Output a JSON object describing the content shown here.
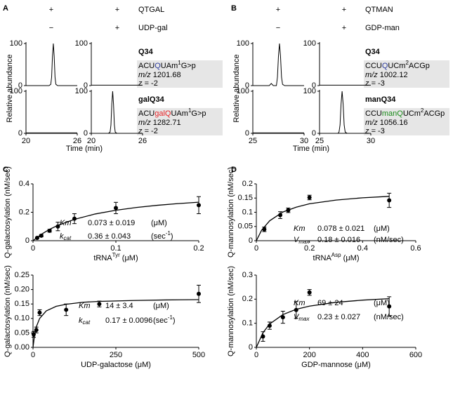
{
  "panel_labels": [
    "A",
    "B",
    "C",
    "D"
  ],
  "chromatogram_panels": [
    {
      "enzyme": {
        "name": "QTGAL",
        "color": "#e8262a",
        "marks": [
          "+",
          "+"
        ]
      },
      "substrate": {
        "name": "UDP-gal",
        "marks": [
          "−",
          "+"
        ]
      },
      "y_label": "Relative abundance",
      "x_label": "Time (min)",
      "species": [
        {
          "name": "Q34",
          "color": "#2e3d9e",
          "sequence": [
            {
              "text": "ACU"
            },
            {
              "text": "Q",
              "color": "#2e3d9e"
            },
            {
              "text": "UAm"
            },
            {
              "text": "1",
              "sup": true
            },
            {
              "text": "G>p"
            }
          ],
          "mz_label": "m/z",
          "mz": 1201.68,
          "z_label": "z",
          "z": "= -2"
        },
        {
          "name": "galQ34",
          "color": "#e8262a",
          "sequence": [
            {
              "text": "ACU"
            },
            {
              "text": "galQ",
              "color": "#e8262a"
            },
            {
              "text": "UAm"
            },
            {
              "text": "1",
              "sup": true
            },
            {
              "text": "G>p"
            }
          ],
          "mz_label": "m/z",
          "mz": 1282.71,
          "z_label": "z",
          "z": "= -2"
        }
      ]
    },
    {
      "enzyme": {
        "name": "QTMAN",
        "color": "#1a8a1a",
        "marks": [
          "+",
          "+"
        ]
      },
      "substrate": {
        "name": "GDP-man",
        "marks": [
          "−",
          "+"
        ]
      },
      "y_label": "Relative abundance",
      "x_label": "Time (min)",
      "species": [
        {
          "name": "Q34",
          "color": "#2e3d9e",
          "sequence": [
            {
              "text": "CCU"
            },
            {
              "text": "Q",
              "color": "#2e3d9e"
            },
            {
              "text": "UCm"
            },
            {
              "text": "2",
              "sup": true
            },
            {
              "text": "ACGp"
            }
          ],
          "mz_label": "m/z",
          "mz": 1002.12,
          "z_label": "z",
          "z": "= -3"
        },
        {
          "name": "manQ34",
          "color": "#1a8a1a",
          "sequence": [
            {
              "text": "CCU"
            },
            {
              "text": "manQ",
              "color": "#1a8a1a"
            },
            {
              "text": "UCm"
            },
            {
              "text": "2",
              "sup": true
            },
            {
              "text": "ACGp"
            }
          ],
          "mz_label": "m/z",
          "mz": 1056.16,
          "z_label": "z",
          "z": "= -3"
        }
      ]
    }
  ],
  "chart_data": [
    {
      "type": "line",
      "x": [
        20,
        22.7,
        22.9,
        23.0,
        23.1,
        23.2,
        23.3,
        23.4,
        23.5,
        23.7,
        26
      ],
      "series": [
        {
          "color": "#000000",
          "values": [
            0,
            0,
            3,
            20,
            70,
            100,
            70,
            20,
            3,
            0,
            0
          ]
        }
      ],
      "xlim": [
        20,
        26
      ],
      "ylim": [
        0,
        100
      ],
      "yticks": [
        0,
        100
      ]
    },
    {
      "type": "line",
      "x": [
        20,
        26
      ],
      "series": [
        {
          "color": "#000000",
          "values": [
            1,
            1
          ]
        }
      ],
      "xlim": [
        20,
        26
      ],
      "ylim": [
        0,
        100
      ],
      "yticks": [
        0,
        100
      ]
    },
    {
      "type": "line",
      "x": [
        20,
        26
      ],
      "series": [
        {
          "color": "#000000",
          "values": [
            1,
            1
          ]
        }
      ],
      "xlim": [
        20,
        26
      ],
      "ylim": [
        0,
        100
      ],
      "yticks": [
        0,
        100
      ],
      "xticks": [
        20,
        26
      ]
    },
    {
      "type": "line",
      "x": [
        20,
        22,
        22.2,
        22.3,
        22.4,
        22.5,
        22.6,
        22.7,
        22.8,
        23,
        26
      ],
      "series": [
        {
          "color": "#000000",
          "values": [
            0,
            0,
            3,
            20,
            70,
            100,
            70,
            20,
            3,
            0,
            0
          ]
        }
      ],
      "xlim": [
        20,
        26
      ],
      "ylim": [
        0,
        100
      ],
      "yticks": [
        0,
        100
      ],
      "xticks": [
        20,
        26
      ]
    },
    {
      "type": "line",
      "x": [
        25,
        26.6,
        26.8,
        27.0,
        27.3,
        27.4,
        27.5,
        27.6,
        27.7,
        27.8,
        27.9,
        28.1,
        30
      ],
      "series": [
        {
          "color": "#000000",
          "values": [
            0,
            0,
            5,
            0,
            0,
            20,
            70,
            100,
            70,
            20,
            3,
            0,
            0
          ]
        }
      ],
      "xlim": [
        25,
        30
      ],
      "ylim": [
        0,
        100
      ],
      "yticks": [
        0,
        100
      ]
    },
    {
      "type": "line",
      "x": [
        25,
        30
      ],
      "series": [
        {
          "color": "#000000",
          "values": [
            1,
            1
          ]
        }
      ],
      "xlim": [
        25,
        30
      ],
      "ylim": [
        0,
        100
      ],
      "yticks": [
        0,
        100
      ]
    },
    {
      "type": "line",
      "x": [
        25,
        30
      ],
      "series": [
        {
          "color": "#000000",
          "values": [
            1,
            1
          ]
        }
      ],
      "xlim": [
        25,
        30
      ],
      "ylim": [
        0,
        100
      ],
      "yticks": [
        0,
        100
      ],
      "xticks": [
        25,
        30
      ]
    },
    {
      "type": "line",
      "x": [
        25,
        26.8,
        26.9,
        27.0,
        27.1,
        27.2,
        27.3,
        27.4,
        27.5,
        27.7,
        30
      ],
      "series": [
        {
          "color": "#000000",
          "values": [
            0,
            0,
            3,
            20,
            70,
            100,
            70,
            20,
            3,
            0,
            0
          ]
        }
      ],
      "xlim": [
        25,
        30
      ],
      "ylim": [
        0,
        100
      ],
      "yticks": [
        0,
        100
      ],
      "xticks": [
        25,
        30
      ]
    },
    {
      "type": "scatter",
      "y_label": "Q-galactosylation (nM/sec)",
      "x_label": [
        {
          "text": "tRNA"
        },
        {
          "text": "Tyr",
          "sup": true
        },
        {
          "text": " (μM)"
        }
      ],
      "color": "#000000",
      "x": [
        0.005,
        0.01,
        0.02,
        0.03,
        0.05,
        0.1,
        0.2
      ],
      "values": [
        0.02,
        0.035,
        0.07,
        0.1,
        0.155,
        0.23,
        0.25
      ],
      "errors": [
        0.005,
        0.008,
        0.01,
        0.03,
        0.035,
        0.04,
        0.06
      ],
      "fit": {
        "x": [
          0,
          0.01,
          0.02,
          0.03,
          0.05,
          0.075,
          0.1,
          0.125,
          0.15,
          0.175,
          0.2
        ],
        "values": [
          0,
          0.045,
          0.08,
          0.108,
          0.15,
          0.188,
          0.214,
          0.234,
          0.249,
          0.261,
          0.271
        ]
      },
      "xlim": [
        0,
        0.2
      ],
      "xticks": [
        0,
        0.1,
        0.2
      ],
      "ylim": [
        0,
        0.4
      ],
      "yticks": [
        0,
        0.2,
        0.4
      ],
      "annotations": [
        {
          "symbol": [
            {
              "text": "Km"
            }
          ],
          "value": "0.073 ± 0.019",
          "unit": [
            {
              "text": "(μM)"
            }
          ]
        },
        {
          "symbol": [
            {
              "text": "k"
            },
            {
              "text": "cat",
              "sub": true
            }
          ],
          "value": "0.36 ± 0.043",
          "unit": [
            {
              "text": "(sec"
            },
            {
              "text": "-1",
              "sup": true
            },
            {
              "text": ")"
            }
          ]
        }
      ]
    },
    {
      "type": "scatter",
      "y_label": "Q-galactosylation (nM/sec)",
      "x_label": [
        {
          "text": "UDP-galactose (μM)"
        }
      ],
      "color": "#000000",
      "x": [
        2,
        10,
        20,
        100,
        200,
        500
      ],
      "values": [
        0.045,
        0.06,
        0.12,
        0.13,
        0.15,
        0.185
      ],
      "errors": [
        0.01,
        0.01,
        0.01,
        0.02,
        0.01,
        0.03
      ],
      "fit": {
        "x": [
          0,
          5,
          10,
          20,
          40,
          70,
          100,
          150,
          200,
          300,
          400,
          500
        ],
        "values": [
          0,
          0.045,
          0.071,
          0.1,
          0.126,
          0.142,
          0.149,
          0.156,
          0.159,
          0.162,
          0.164,
          0.165
        ]
      },
      "xlim": [
        0,
        500
      ],
      "xticks": [
        0,
        250,
        500
      ],
      "ylim": [
        0,
        0.25
      ],
      "yticks": [
        {
          "value": 0,
          "label": "0.00"
        },
        {
          "value": 0.05,
          "label": "0.05"
        },
        {
          "value": 0.1,
          "label": "0.10"
        },
        {
          "value": 0.15,
          "label": "0.15"
        },
        {
          "value": 0.2,
          "label": "0.20"
        },
        {
          "value": 0.25,
          "label": "0.25"
        }
      ],
      "annotations": [
        {
          "symbol": [
            {
              "text": "Km"
            }
          ],
          "value": "14 ± 3.4",
          "unit": [
            {
              "text": "(μM)"
            }
          ]
        },
        {
          "symbol": [
            {
              "text": "k"
            },
            {
              "text": "cat",
              "sub": true
            }
          ],
          "value": "0.17 ± 0.0096",
          "unit": [
            {
              "text": "(sec"
            },
            {
              "text": "-1",
              "sup": true
            },
            {
              "text": ")"
            }
          ]
        }
      ]
    },
    {
      "type": "scatter",
      "y_label": "Q-mannosylation (nM/sec)",
      "x_label": [
        {
          "text": "tRNA"
        },
        {
          "text": "Asp",
          "sup": true
        },
        {
          "text": " (μM)"
        }
      ],
      "color": "#000000",
      "x": [
        0.03,
        0.09,
        0.12,
        0.2,
        0.5
      ],
      "values": [
        0.04,
        0.09,
        0.107,
        0.152,
        0.142
      ],
      "errors": [
        0.008,
        0.012,
        0.008,
        0.008,
        0.025
      ],
      "fit": {
        "x": [
          0,
          0.02,
          0.05,
          0.1,
          0.15,
          0.2,
          0.3,
          0.4,
          0.5
        ],
        "values": [
          0,
          0.037,
          0.07,
          0.101,
          0.118,
          0.13,
          0.143,
          0.151,
          0.156
        ]
      },
      "xlim": [
        0,
        0.6
      ],
      "xticks": [
        0,
        0.2,
        0.4,
        0.6
      ],
      "ylim": [
        0,
        0.2
      ],
      "yticks": [
        0,
        0.05,
        0.1,
        0.15,
        0.2
      ],
      "annotations": [
        {
          "symbol": [
            {
              "text": "Km"
            }
          ],
          "value": "0.078 ± 0.021",
          "unit": [
            {
              "text": "(μM)"
            }
          ]
        },
        {
          "symbol": [
            {
              "text": "V"
            },
            {
              "text": "max",
              "sub": true
            }
          ],
          "value": "0.18 ± 0.016",
          "unit": [
            {
              "text": "(nM/sec)"
            }
          ]
        }
      ]
    },
    {
      "type": "scatter",
      "y_label": "Q-mannosylation (nM/sec)",
      "x_label": [
        {
          "text": "GDP-mannose (μM)"
        }
      ],
      "color": "#000000",
      "x": [
        25,
        50,
        100,
        150,
        200,
        500
      ],
      "values": [
        0.045,
        0.09,
        0.125,
        0.155,
        0.228,
        0.17
      ],
      "errors": [
        0.02,
        0.015,
        0.025,
        0.035,
        0.012,
        0.04
      ],
      "fit": {
        "x": [
          0,
          25,
          50,
          100,
          150,
          200,
          300,
          400,
          500
        ],
        "values": [
          0,
          0.061,
          0.097,
          0.136,
          0.158,
          0.171,
          0.187,
          0.196,
          0.202
        ]
      },
      "xlim": [
        0,
        600
      ],
      "xticks": [
        0,
        200,
        400,
        600
      ],
      "ylim": [
        0,
        0.3
      ],
      "yticks": [
        0,
        0.1,
        0.2,
        0.3
      ],
      "annotations": [
        {
          "symbol": [
            {
              "text": "Km"
            }
          ],
          "value": "69 ± 24",
          "unit": [
            {
              "text": "(μM)"
            }
          ]
        },
        {
          "symbol": [
            {
              "text": "V"
            },
            {
              "text": "max",
              "sub": true
            }
          ],
          "value": "0.23 ± 0.027",
          "unit": [
            {
              "text": "(nM/sec)"
            }
          ]
        }
      ]
    }
  ]
}
